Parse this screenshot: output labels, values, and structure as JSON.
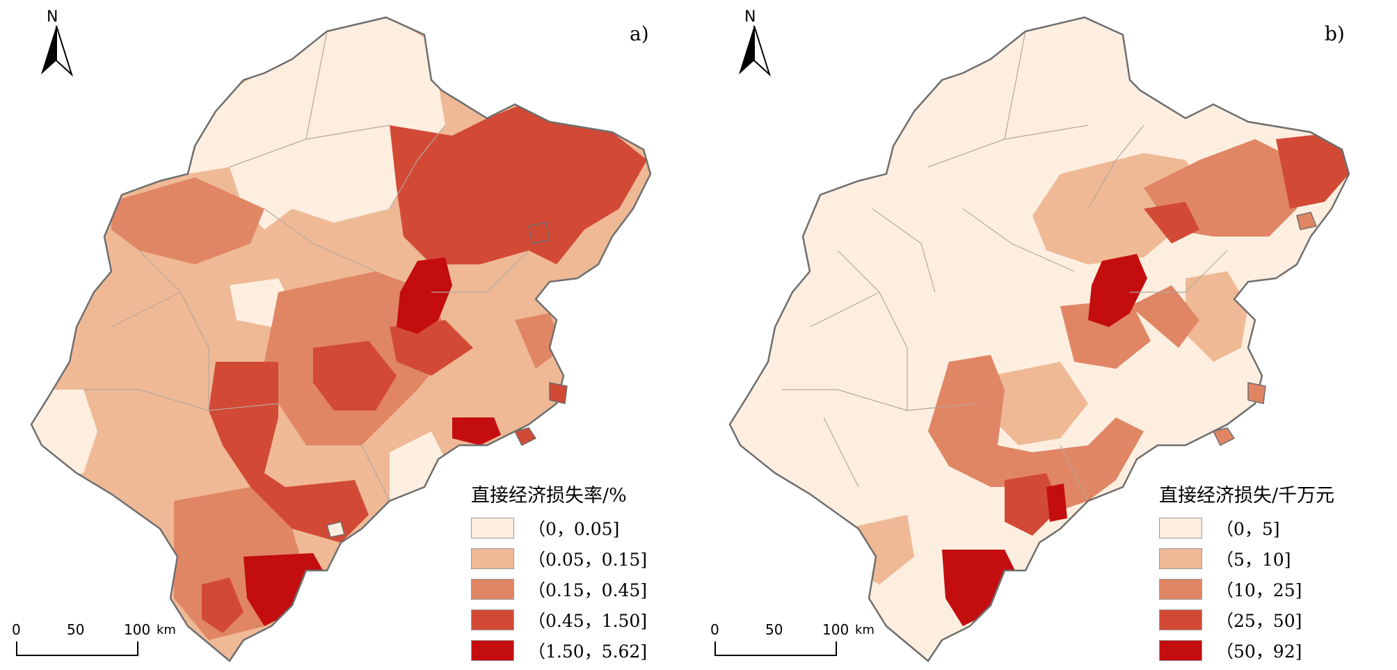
{
  "panels": {
    "a": {
      "label": "a)",
      "north": "N",
      "legend_title": "直接经济损失率/%",
      "classes": [
        {
          "label": "（0，0.05]",
          "color": "#fdeee0"
        },
        {
          "label": "（0.05，0.15]",
          "color": "#efb996"
        },
        {
          "label": "（0.15，0.45]",
          "color": "#e08664"
        },
        {
          "label": "（0.45，1.50]",
          "color": "#d24a36"
        },
        {
          "label": "（1.50，5.62]",
          "color": "#c30d0f"
        }
      ],
      "scale": {
        "t0": "0",
        "t1": "50",
        "t2": "100",
        "unit": "km"
      }
    },
    "b": {
      "label": "b)",
      "north": "N",
      "legend_title": "直接经济损失/千万元",
      "classes": [
        {
          "label": "（0，5]",
          "color": "#fdeee0"
        },
        {
          "label": "（5，10]",
          "color": "#efb996"
        },
        {
          "label": "（10，25]",
          "color": "#e08664"
        },
        {
          "label": "（25，50]",
          "color": "#d24a36"
        },
        {
          "label": "（50，92]",
          "color": "#c30d0f"
        }
      ],
      "scale": {
        "t0": "0",
        "t1": "50",
        "t2": "100",
        "unit": "km"
      }
    }
  },
  "colors": {
    "coast": "#6e6e6e",
    "border": "#b5a79d"
  }
}
